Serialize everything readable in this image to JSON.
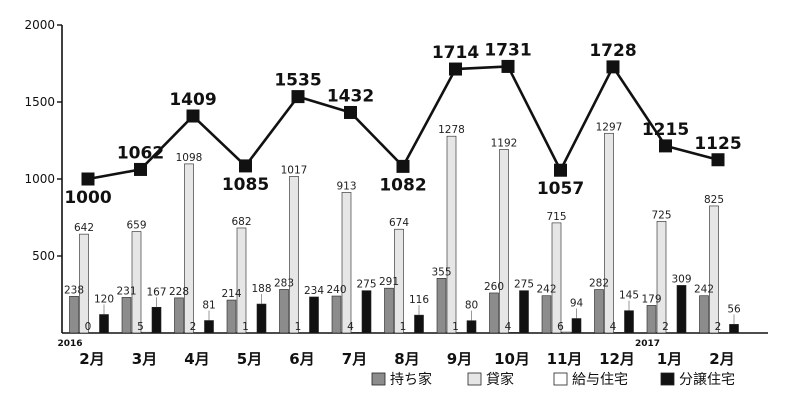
{
  "chart_data": {
    "type": "bar",
    "yticks": [
      "2000",
      "1500",
      "1000",
      "500"
    ],
    "ylim": [
      0,
      2000
    ],
    "grid": false,
    "legend_position": "bottom-right",
    "year_labels": [
      {
        "text": "2016",
        "category_index": 0
      },
      {
        "text": "2017",
        "category_index": 11
      }
    ],
    "categories": [
      "2月",
      "3月",
      "4月",
      "5月",
      "6月",
      "7月",
      "8月",
      "9月",
      "10月",
      "11月",
      "12月",
      "1月",
      "2月"
    ],
    "series": [
      {
        "name": "持ち家",
        "color": "#8c8c8c",
        "values": [
          238,
          231,
          228,
          214,
          283,
          240,
          291,
          355,
          260,
          242,
          282,
          179,
          242
        ]
      },
      {
        "name": "貸家",
        "color": "#e6e6e6",
        "values": [
          642,
          659,
          1098,
          682,
          1017,
          913,
          674,
          1278,
          1192,
          715,
          1297,
          725,
          825
        ]
      },
      {
        "name": "給与住宅",
        "color": "#ffffff",
        "values": [
          0,
          5,
          2,
          1,
          1,
          4,
          1,
          1,
          4,
          6,
          4,
          2,
          2
        ]
      },
      {
        "name": "分譲住宅",
        "color": "#111111",
        "values": [
          120,
          167,
          81,
          188,
          234,
          275,
          116,
          80,
          275,
          94,
          145,
          309,
          56
        ]
      }
    ],
    "line_values": [
      1000,
      1062,
      1409,
      1085,
      1535,
      1432,
      1082,
      1714,
      1731,
      1057,
      1728,
      1215,
      1125
    ],
    "line_label_positions": [
      "below",
      "above",
      "above",
      "below",
      "above",
      "above",
      "below",
      "above",
      "above",
      "below",
      "above",
      "above",
      "above"
    ]
  }
}
